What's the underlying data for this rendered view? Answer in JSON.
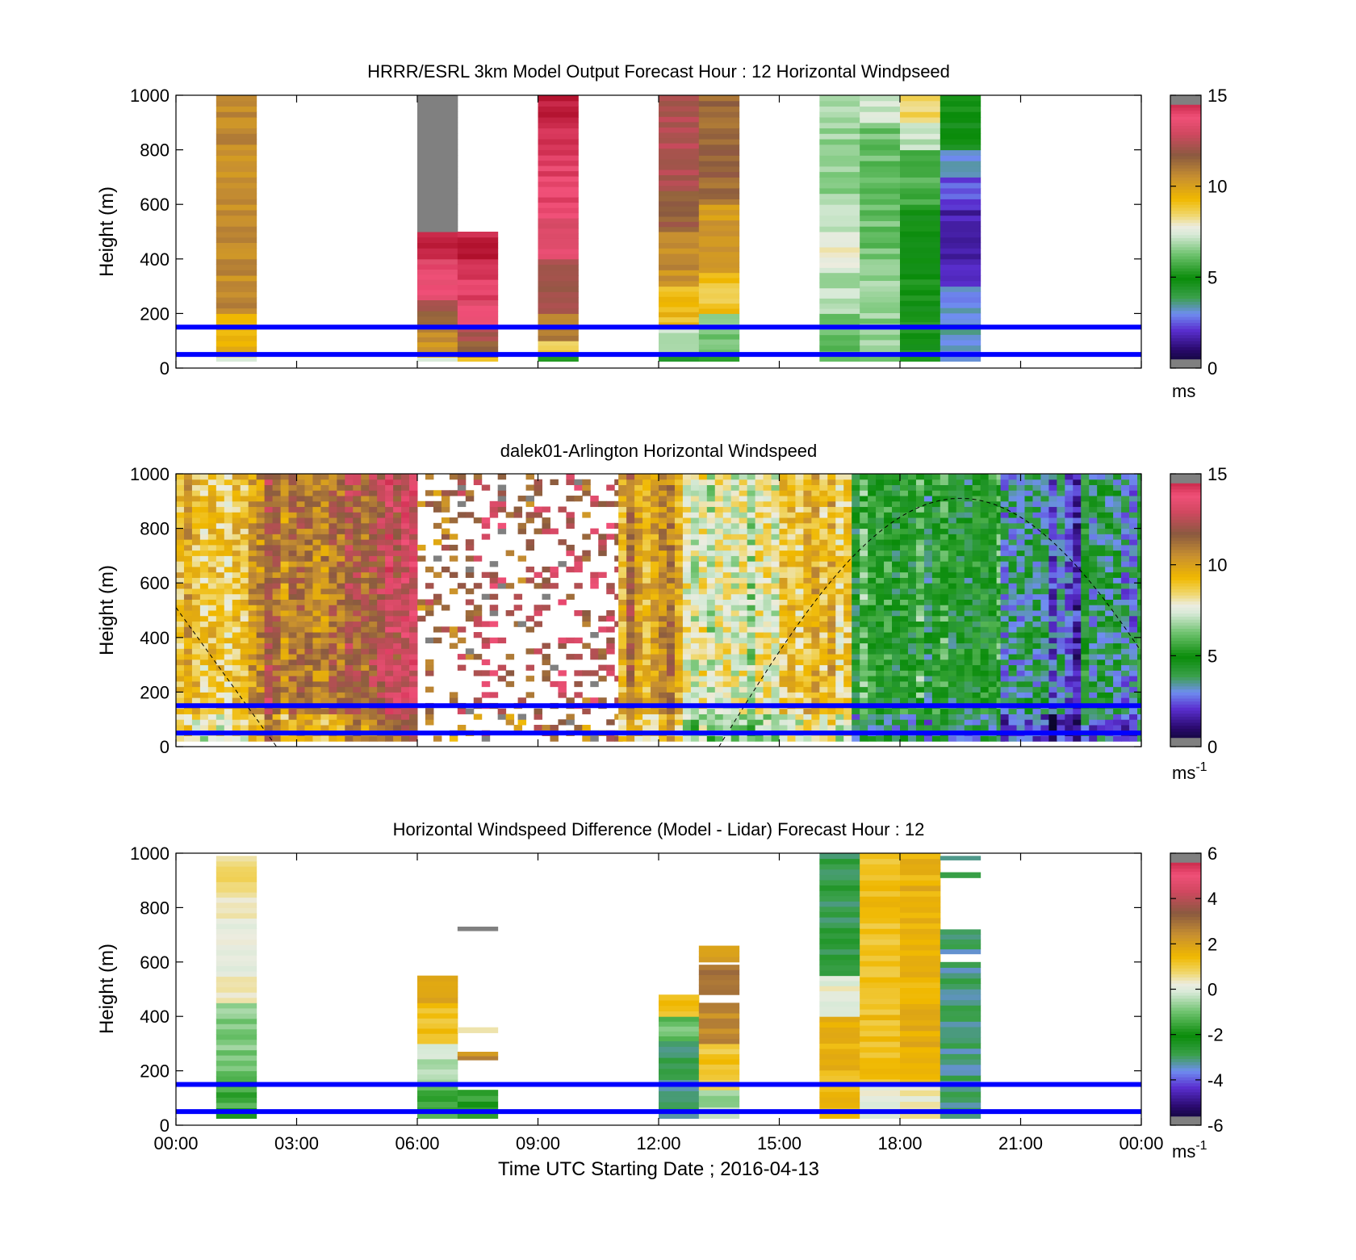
{
  "chart_data": [
    {
      "type": "heatmap",
      "title": "HRRR/ESRL 3km Model Output   Forecast Hour : 12 Horizontal Windpseed",
      "xlabel": "",
      "ylabel": "Height (m)",
      "xlim": [
        0,
        24
      ],
      "ylim": [
        0,
        1000
      ],
      "yticks": [
        "0",
        "200",
        "400",
        "600",
        "800",
        "1000"
      ],
      "xtick_hours": [
        0,
        3,
        6,
        9,
        12,
        15,
        18,
        21,
        24
      ],
      "colorbar": {
        "min": 0,
        "max": 15,
        "ticks": [
          "0",
          "5",
          "10",
          "15"
        ],
        "unit": "ms"
      },
      "reference_lines_m": [
        50,
        150
      ],
      "reference_line_color": "#0000ff",
      "columns": [
        {
          "x0": 1.0,
          "x1": 2.0,
          "cells": [
            [
              25,
              40,
              7.5
            ],
            [
              40,
              60,
              8.5
            ],
            [
              60,
              200,
              9.4
            ],
            [
              200,
              1000,
              10.6
            ]
          ]
        },
        {
          "x0": 6.0,
          "x1": 7.0,
          "cells": [
            [
              25,
              40,
              7.8
            ],
            [
              40,
              60,
              9.2
            ],
            [
              60,
              150,
              10.5
            ],
            [
              150,
              250,
              11.8
            ],
            [
              250,
              400,
              13.8
            ],
            [
              400,
              500,
              14.6
            ],
            [
              500,
              1000,
              "nan"
            ]
          ]
        },
        {
          "x0": 7.0,
          "x1": 8.0,
          "cells": [
            [
              25,
              40,
              8.8
            ],
            [
              40,
              100,
              11.2
            ],
            [
              100,
              150,
              12.1
            ],
            [
              150,
              250,
              13.5
            ],
            [
              250,
              400,
              14.0
            ],
            [
              400,
              500,
              14.8
            ]
          ]
        },
        {
          "x0": 9.0,
          "x1": 10.0,
          "cells": [
            [
              25,
              50,
              5.4
            ],
            [
              50,
              100,
              8.6
            ],
            [
              100,
              200,
              10.8
            ],
            [
              200,
              400,
              12.1
            ],
            [
              400,
              550,
              13.2
            ],
            [
              550,
              800,
              14.1
            ],
            [
              800,
              1000,
              14.5
            ]
          ]
        },
        {
          "x0": 12.0,
          "x1": 13.0,
          "cells": [
            [
              25,
              50,
              4.8
            ],
            [
              50,
              150,
              7.3
            ],
            [
              150,
              300,
              9.2
            ],
            [
              300,
              500,
              10.5
            ],
            [
              500,
              650,
              11.6
            ],
            [
              650,
              1000,
              12.3
            ]
          ]
        },
        {
          "x0": 13.0,
          "x1": 14.0,
          "cells": [
            [
              25,
              50,
              5.2
            ],
            [
              50,
              200,
              6.4
            ],
            [
              200,
              350,
              9.0
            ],
            [
              350,
              600,
              10.2
            ],
            [
              600,
              1000,
              11.4
            ]
          ]
        },
        {
          "x0": 16.0,
          "x1": 17.0,
          "cells": [
            [
              25,
              200,
              6.2
            ],
            [
              200,
              350,
              7.0
            ],
            [
              350,
              500,
              7.7
            ],
            [
              500,
              600,
              7.1
            ],
            [
              600,
              1000,
              6.7
            ]
          ]
        },
        {
          "x0": 17.0,
          "x1": 18.0,
          "cells": [
            [
              25,
              400,
              6.6
            ],
            [
              400,
              900,
              6.2
            ],
            [
              900,
              1000,
              7.4
            ]
          ]
        },
        {
          "x0": 18.0,
          "x1": 19.0,
          "cells": [
            [
              25,
              150,
              5.0
            ],
            [
              150,
              600,
              5.0
            ],
            [
              600,
              800,
              5.8
            ],
            [
              800,
              900,
              7.2
            ],
            [
              900,
              1000,
              8.4
            ]
          ]
        },
        {
          "x0": 19.0,
          "x1": 20.0,
          "cells": [
            [
              25,
              300,
              3.2
            ],
            [
              300,
              600,
              1.8
            ],
            [
              600,
              700,
              2.4
            ],
            [
              700,
              800,
              3.4
            ],
            [
              800,
              900,
              4.8
            ],
            [
              900,
              1000,
              5.2
            ]
          ]
        }
      ]
    },
    {
      "type": "heatmap",
      "title": "dalek01-Arlington  Horizontal Windspeed",
      "xlabel": "",
      "ylabel": "Height (m)",
      "xlim": [
        0,
        24
      ],
      "ylim": [
        0,
        1000
      ],
      "yticks": [
        "0",
        "200",
        "400",
        "600",
        "800",
        "1000"
      ],
      "xtick_hours": [
        0,
        3,
        6,
        9,
        12,
        15,
        18,
        21,
        24
      ],
      "colorbar": {
        "min": 0,
        "max": 15,
        "ticks": [
          "0",
          "5",
          "10",
          "15"
        ],
        "unit": "ms",
        "unit_exp": "-1"
      },
      "reference_lines_m": [
        50,
        150
      ],
      "reference_line_color": "#0000ff",
      "solar_curve": {
        "color": "#000000",
        "style": "dashed",
        "peak_hour": 19.5,
        "peak_height_m": 910,
        "zero_hours": [
          2.5,
          13.5
        ],
        "start_height_m": 510,
        "end_height_m": 520
      },
      "segments_mean_windspeed": [
        {
          "x0": 0.0,
          "x1": 2.0,
          "value": 9.5
        },
        {
          "x0": 2.0,
          "x1": 5.0,
          "value": 11.3
        },
        {
          "x0": 5.0,
          "x1": 6.0,
          "value": 12.6
        },
        {
          "x0": 6.0,
          "x1": 8.5,
          "value": 12.0,
          "sparse": true
        },
        {
          "x0": 8.5,
          "x1": 11.0,
          "value": 11.8,
          "sparse": true
        },
        {
          "x0": 11.0,
          "x1": 12.6,
          "value": 10.4
        },
        {
          "x0": 12.6,
          "x1": 15.0,
          "value": 7.4
        },
        {
          "x0": 15.0,
          "x1": 16.8,
          "value": 9.4
        },
        {
          "x0": 16.8,
          "x1": 20.5,
          "value": 5.2
        },
        {
          "x0": 20.5,
          "x1": 22.5,
          "value": 2.8
        },
        {
          "x0": 22.5,
          "x1": 24.0,
          "value": 3.8
        }
      ]
    },
    {
      "type": "heatmap",
      "title": "Horizontal Windspeed Difference (Model - Lidar) Forecast Hour : 12",
      "xlabel": "Time UTC  Starting Date ; 2016-04-13",
      "ylabel": "Height (m)",
      "xlim": [
        0,
        24
      ],
      "ylim": [
        0,
        1000
      ],
      "yticks": [
        "0",
        "200",
        "400",
        "600",
        "800",
        "1000"
      ],
      "xticks": [
        "00:00",
        "03:00",
        "06:00",
        "09:00",
        "12:00",
        "15:00",
        "18:00",
        "21:00",
        "00:00"
      ],
      "xtick_hours": [
        0,
        3,
        6,
        9,
        12,
        15,
        18,
        21,
        24
      ],
      "colorbar": {
        "min": -6,
        "max": 6,
        "ticks": [
          "-6",
          "-4",
          "-2",
          "0",
          "2",
          "4",
          "6"
        ],
        "unit": "ms",
        "unit_exp": "-1"
      },
      "reference_lines_m": [
        50,
        150
      ],
      "reference_line_color": "#0000ff",
      "columns": [
        {
          "x0": 1.0,
          "x1": 2.0,
          "cells": [
            [
              25,
              200,
              -1.5
            ],
            [
              200,
              450,
              -0.8
            ],
            [
              450,
              800,
              0.3
            ],
            [
              800,
              990,
              0.6
            ]
          ]
        },
        {
          "x0": 6.0,
          "x1": 7.0,
          "cells": [
            [
              25,
              150,
              -1.4
            ],
            [
              150,
              300,
              -0.3
            ],
            [
              300,
              450,
              1.3
            ],
            [
              450,
              550,
              1.9
            ]
          ]
        },
        {
          "x0": 7.0,
          "x1": 8.0,
          "cells": [
            [
              25,
              130,
              -1.6
            ],
            [
              240,
              270,
              2.4
            ],
            [
              340,
              360,
              0.8
            ],
            [
              715,
              730,
              "nan"
            ]
          ]
        },
        {
          "x0": 12.0,
          "x1": 13.0,
          "cells": [
            [
              25,
              310,
              -3.0
            ],
            [
              310,
              400,
              -1.0
            ],
            [
              400,
              480,
              1.2
            ]
          ]
        },
        {
          "x0": 13.0,
          "x1": 14.0,
          "cells": [
            [
              25,
              130,
              -0.5
            ],
            [
              130,
              300,
              1.2
            ],
            [
              300,
              450,
              2.4
            ],
            [
              480,
              590,
              3.0
            ],
            [
              600,
              660,
              2.2
            ]
          ]
        },
        {
          "x0": 16.0,
          "x1": 17.0,
          "cells": [
            [
              25,
              400,
              1.5
            ],
            [
              400,
              550,
              0.2
            ],
            [
              550,
              1000,
              -2.8
            ]
          ]
        },
        {
          "x0": 17.0,
          "x1": 18.0,
          "cells": [
            [
              25,
              150,
              0.2
            ],
            [
              150,
              1000,
              1.3
            ]
          ]
        },
        {
          "x0": 18.0,
          "x1": 19.0,
          "cells": [
            [
              25,
              150,
              0.4
            ],
            [
              150,
              1000,
              1.6
            ]
          ]
        },
        {
          "x0": 19.0,
          "x1": 20.0,
          "cells": [
            [
              25,
              600,
              -3.1
            ],
            [
              630,
              720,
              -3.2
            ],
            [
              910,
              930,
              -3.0
            ],
            [
              975,
              990,
              -3.0
            ]
          ]
        }
      ]
    }
  ]
}
